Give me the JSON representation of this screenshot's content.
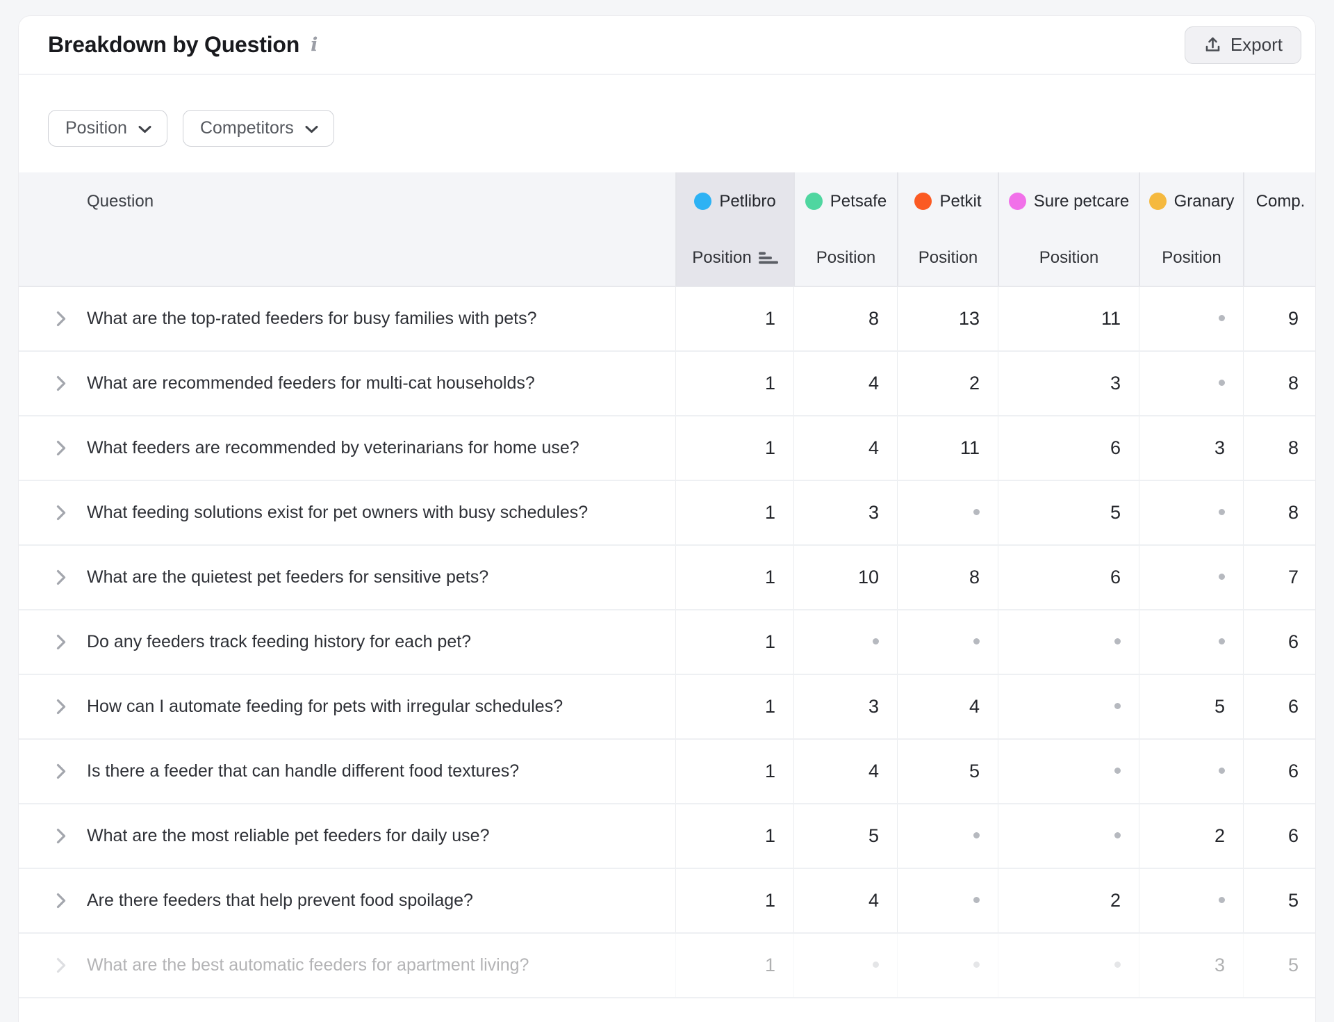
{
  "header": {
    "title": "Breakdown by Question",
    "export_label": "Export"
  },
  "filters": [
    {
      "label": "Position"
    },
    {
      "label": "Competitors"
    }
  ],
  "icons": {
    "info": "italic-i",
    "export": "upload-tray-arrow",
    "filter_caret": "chevron-down",
    "row_expand": "chevron-right",
    "sort": "sort-bars-ascending",
    "missing_value": "gray-dot"
  },
  "table": {
    "question_header": "Question",
    "columns": [
      {
        "name": "Petlibro",
        "color": "#2db2f4",
        "position_label": "Position",
        "sorted": true
      },
      {
        "name": "Petsafe",
        "color": "#4fd6a0",
        "position_label": "Position",
        "sorted": false
      },
      {
        "name": "Petkit",
        "color": "#fb5a23",
        "position_label": "Position",
        "sorted": false
      },
      {
        "name": "Sure petcare",
        "color": "#f170e9",
        "position_label": "Position",
        "sorted": false
      },
      {
        "name": "Granary",
        "color": "#f5b93f",
        "position_label": "Position",
        "sorted": false
      },
      {
        "name": "Comp.",
        "color": null,
        "position_label": null,
        "sorted": false
      }
    ],
    "rows": [
      {
        "question": "What are the top-rated feeders for busy families with pets?",
        "values": [
          "1",
          "8",
          "13",
          "11",
          null,
          "9"
        ],
        "faded": false
      },
      {
        "question": "What are recommended feeders for multi-cat households?",
        "values": [
          "1",
          "4",
          "2",
          "3",
          null,
          "8"
        ],
        "faded": false
      },
      {
        "question": "What feeders are recommended by veterinarians for home use?",
        "values": [
          "1",
          "4",
          "11",
          "6",
          "3",
          "8"
        ],
        "faded": false
      },
      {
        "question": "What feeding solutions exist for pet owners with busy schedules?",
        "values": [
          "1",
          "3",
          null,
          "5",
          null,
          "8"
        ],
        "faded": false
      },
      {
        "question": "What are the quietest pet feeders for sensitive pets?",
        "values": [
          "1",
          "10",
          "8",
          "6",
          null,
          "7"
        ],
        "faded": false
      },
      {
        "question": "Do any feeders track feeding history for each pet?",
        "values": [
          "1",
          null,
          null,
          null,
          null,
          "6"
        ],
        "faded": false
      },
      {
        "question": "How can I automate feeding for pets with irregular schedules?",
        "values": [
          "1",
          "3",
          "4",
          null,
          "5",
          "6"
        ],
        "faded": false
      },
      {
        "question": "Is there a feeder that can handle different food textures?",
        "values": [
          "1",
          "4",
          "5",
          null,
          null,
          "6"
        ],
        "faded": false
      },
      {
        "question": "What are the most reliable pet feeders for daily use?",
        "values": [
          "1",
          "5",
          null,
          null,
          "2",
          "6"
        ],
        "faded": false
      },
      {
        "question": "Are there feeders that help prevent food spoilage?",
        "values": [
          "1",
          "4",
          null,
          "2",
          null,
          "5"
        ],
        "faded": false
      },
      {
        "question": "What are the best automatic feeders for apartment living?",
        "values": [
          "1",
          null,
          null,
          null,
          "3",
          "5"
        ],
        "faded": true
      }
    ]
  }
}
